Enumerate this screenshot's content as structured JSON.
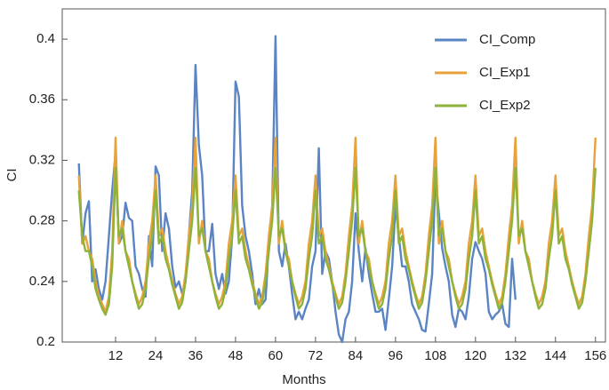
{
  "chart_data": {
    "type": "line",
    "xlabel": "Months",
    "ylabel": "CI",
    "x": [
      1,
      2,
      3,
      4,
      5,
      6,
      7,
      8,
      9,
      10,
      11,
      12,
      13,
      14,
      15,
      16,
      17,
      18,
      19,
      20,
      21,
      22,
      23,
      24,
      25,
      26,
      27,
      28,
      29,
      30,
      31,
      32,
      33,
      34,
      35,
      36,
      37,
      38,
      39,
      40,
      41,
      42,
      43,
      44,
      45,
      46,
      47,
      48,
      49,
      50,
      51,
      52,
      53,
      54,
      55,
      56,
      57,
      58,
      59,
      60,
      61,
      62,
      63,
      64,
      65,
      66,
      67,
      68,
      69,
      70,
      71,
      72,
      73,
      74,
      75,
      76,
      77,
      78,
      79,
      80,
      81,
      82,
      83,
      84,
      85,
      86,
      87,
      88,
      89,
      90,
      91,
      92,
      93,
      94,
      95,
      96,
      97,
      98,
      99,
      100,
      101,
      102,
      103,
      104,
      105,
      106,
      107,
      108,
      109,
      110,
      111,
      112,
      113,
      114,
      115,
      116,
      117,
      118,
      119,
      120,
      121,
      122,
      123,
      124,
      125,
      126,
      127,
      128,
      129,
      130,
      131,
      132,
      133,
      134,
      135,
      136,
      137,
      138,
      139,
      140,
      141,
      142,
      143,
      144,
      145,
      146,
      147,
      148,
      149,
      150,
      151,
      152,
      153,
      154,
      155,
      156
    ],
    "series": [
      {
        "name": "CI_Comp",
        "color": "#5b84c4",
        "values": [
          0.318,
          0.265,
          0.285,
          0.293,
          0.24,
          0.248,
          0.235,
          0.228,
          0.24,
          0.27,
          0.3,
          0.325,
          0.265,
          0.27,
          0.292,
          0.282,
          0.28,
          0.25,
          0.245,
          0.235,
          0.23,
          0.27,
          0.25,
          0.316,
          0.31,
          0.26,
          0.285,
          0.275,
          0.25,
          0.236,
          0.24,
          0.232,
          0.24,
          0.27,
          0.3,
          0.383,
          0.33,
          0.31,
          0.26,
          0.26,
          0.278,
          0.245,
          0.235,
          0.245,
          0.232,
          0.24,
          0.27,
          0.372,
          0.362,
          0.29,
          0.27,
          0.26,
          0.245,
          0.225,
          0.235,
          0.225,
          0.228,
          0.265,
          0.29,
          0.402,
          0.26,
          0.25,
          0.265,
          0.25,
          0.232,
          0.215,
          0.22,
          0.215,
          0.222,
          0.228,
          0.25,
          0.26,
          0.328,
          0.245,
          0.26,
          0.255,
          0.24,
          0.22,
          0.205,
          0.2,
          0.215,
          0.22,
          0.24,
          0.285,
          0.26,
          0.24,
          0.262,
          0.245,
          0.232,
          0.22,
          0.22,
          0.222,
          0.208,
          0.228,
          0.25,
          0.29,
          0.27,
          0.25,
          0.25,
          0.24,
          0.225,
          0.22,
          0.215,
          0.208,
          0.207,
          0.225,
          0.245,
          0.31,
          0.285,
          0.262,
          0.25,
          0.24,
          0.218,
          0.21,
          0.222,
          0.22,
          0.215,
          0.23,
          0.255,
          0.266,
          0.26,
          0.255,
          0.245,
          0.22,
          0.215,
          0.218,
          0.22,
          0.225,
          0.212,
          0.21,
          0.255,
          0.228,
          null,
          null,
          null,
          null,
          null,
          null,
          null,
          null,
          null,
          null,
          null,
          null,
          null,
          null,
          null,
          null,
          null,
          null,
          null,
          null,
          null,
          null,
          null,
          null
        ]
      },
      {
        "name": "CI_Exp1",
        "color": "#e8a23a",
        "values": [
          0.31,
          0.265,
          0.27,
          0.26,
          0.255,
          0.24,
          0.23,
          0.225,
          0.22,
          0.23,
          0.26,
          0.335,
          0.265,
          0.28,
          0.26,
          0.255,
          0.24,
          0.232,
          0.225,
          0.23,
          0.24,
          0.265,
          0.28,
          0.31,
          0.27,
          0.275,
          0.26,
          0.25,
          0.24,
          0.232,
          0.225,
          0.23,
          0.245,
          0.27,
          0.29,
          0.335,
          0.265,
          0.28,
          0.26,
          0.255,
          0.24,
          0.232,
          0.225,
          0.23,
          0.24,
          0.265,
          0.28,
          0.31,
          0.27,
          0.275,
          0.26,
          0.25,
          0.24,
          0.232,
          0.225,
          0.23,
          0.245,
          0.27,
          0.29,
          0.335,
          0.265,
          0.28,
          0.26,
          0.255,
          0.24,
          0.232,
          0.225,
          0.23,
          0.24,
          0.265,
          0.28,
          0.31,
          0.27,
          0.275,
          0.26,
          0.25,
          0.24,
          0.232,
          0.225,
          0.23,
          0.245,
          0.27,
          0.29,
          0.335,
          0.265,
          0.28,
          0.26,
          0.255,
          0.24,
          0.232,
          0.225,
          0.23,
          0.24,
          0.265,
          0.28,
          0.31,
          0.27,
          0.275,
          0.26,
          0.25,
          0.24,
          0.232,
          0.225,
          0.23,
          0.245,
          0.27,
          0.29,
          0.335,
          0.265,
          0.28,
          0.26,
          0.255,
          0.24,
          0.232,
          0.225,
          0.23,
          0.24,
          0.265,
          0.28,
          0.31,
          0.27,
          0.275,
          0.26,
          0.25,
          0.24,
          0.232,
          0.225,
          0.23,
          0.245,
          0.27,
          0.29,
          0.335,
          0.265,
          0.28,
          0.26,
          0.255,
          0.24,
          0.232,
          0.225,
          0.23,
          0.24,
          0.265,
          0.28,
          0.31,
          0.27,
          0.275,
          0.26,
          0.25,
          0.24,
          0.232,
          0.225,
          0.23,
          0.245,
          0.27,
          0.29,
          0.335
        ]
      },
      {
        "name": "CI_Exp2",
        "color": "#8db33a",
        "values": [
          0.3,
          0.27,
          0.26,
          0.26,
          0.25,
          0.235,
          0.228,
          0.222,
          0.218,
          0.225,
          0.25,
          0.315,
          0.27,
          0.275,
          0.26,
          0.25,
          0.24,
          0.23,
          0.222,
          0.225,
          0.235,
          0.255,
          0.27,
          0.3,
          0.265,
          0.27,
          0.255,
          0.248,
          0.238,
          0.23,
          0.222,
          0.226,
          0.24,
          0.26,
          0.28,
          0.315,
          0.27,
          0.275,
          0.26,
          0.25,
          0.24,
          0.23,
          0.222,
          0.225,
          0.235,
          0.255,
          0.27,
          0.3,
          0.265,
          0.27,
          0.255,
          0.248,
          0.238,
          0.23,
          0.222,
          0.226,
          0.24,
          0.26,
          0.28,
          0.315,
          0.27,
          0.275,
          0.26,
          0.25,
          0.24,
          0.23,
          0.222,
          0.225,
          0.235,
          0.255,
          0.27,
          0.3,
          0.265,
          0.27,
          0.255,
          0.248,
          0.238,
          0.23,
          0.222,
          0.226,
          0.24,
          0.26,
          0.28,
          0.315,
          0.27,
          0.275,
          0.26,
          0.25,
          0.24,
          0.23,
          0.222,
          0.225,
          0.235,
          0.255,
          0.27,
          0.3,
          0.265,
          0.27,
          0.255,
          0.248,
          0.238,
          0.23,
          0.222,
          0.226,
          0.24,
          0.26,
          0.28,
          0.315,
          0.27,
          0.275,
          0.26,
          0.25,
          0.24,
          0.23,
          0.222,
          0.225,
          0.235,
          0.255,
          0.27,
          0.3,
          0.265,
          0.27,
          0.255,
          0.248,
          0.238,
          0.23,
          0.222,
          0.226,
          0.24,
          0.26,
          0.28,
          0.315,
          0.27,
          0.275,
          0.26,
          0.25,
          0.24,
          0.23,
          0.222,
          0.225,
          0.235,
          0.255,
          0.27,
          0.3,
          0.265,
          0.27,
          0.255,
          0.248,
          0.238,
          0.23,
          0.222,
          0.226,
          0.24,
          0.26,
          0.28,
          0.315
        ]
      }
    ],
    "xlim": [
      -4,
      159
    ],
    "xticks": [
      12,
      24,
      36,
      48,
      60,
      72,
      84,
      96,
      108,
      120,
      132,
      144,
      156
    ],
    "ylim": [
      0.2,
      0.42
    ],
    "yticks": [
      0.2,
      0.24,
      0.28,
      0.32,
      0.36,
      0.4
    ],
    "legend": "upper right"
  }
}
